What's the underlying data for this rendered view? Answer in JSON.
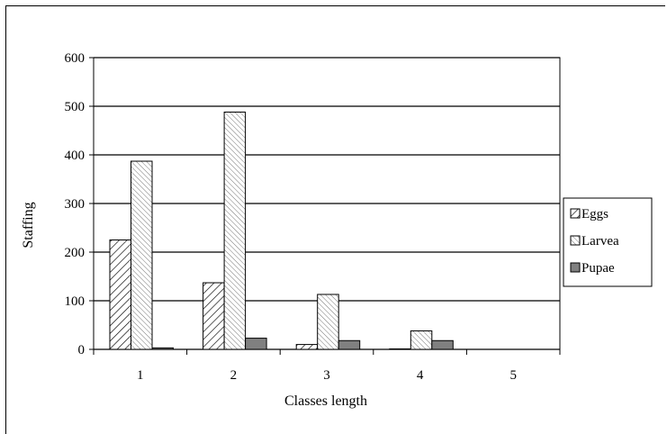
{
  "chart_data": {
    "type": "bar",
    "xlabel": "Classes length",
    "ylabel": "Staffing",
    "ylim": [
      0,
      600
    ],
    "yticks": [
      0,
      100,
      200,
      300,
      400,
      500,
      600
    ],
    "categories": [
      "1",
      "2",
      "3",
      "4",
      "5"
    ],
    "grid": true,
    "legend_position": "right",
    "series": [
      {
        "name": "Eggs",
        "values": [
          225,
          137,
          10,
          1,
          0
        ],
        "pattern": "diag-right",
        "color": "#ffffff"
      },
      {
        "name": "Larvea",
        "values": [
          387,
          488,
          113,
          38,
          0
        ],
        "pattern": "diag-left-fine",
        "color": "#e8e8e8"
      },
      {
        "name": "Pupae",
        "values": [
          3,
          23,
          18,
          18,
          0
        ],
        "pattern": "solid",
        "color": "#808080"
      }
    ]
  }
}
